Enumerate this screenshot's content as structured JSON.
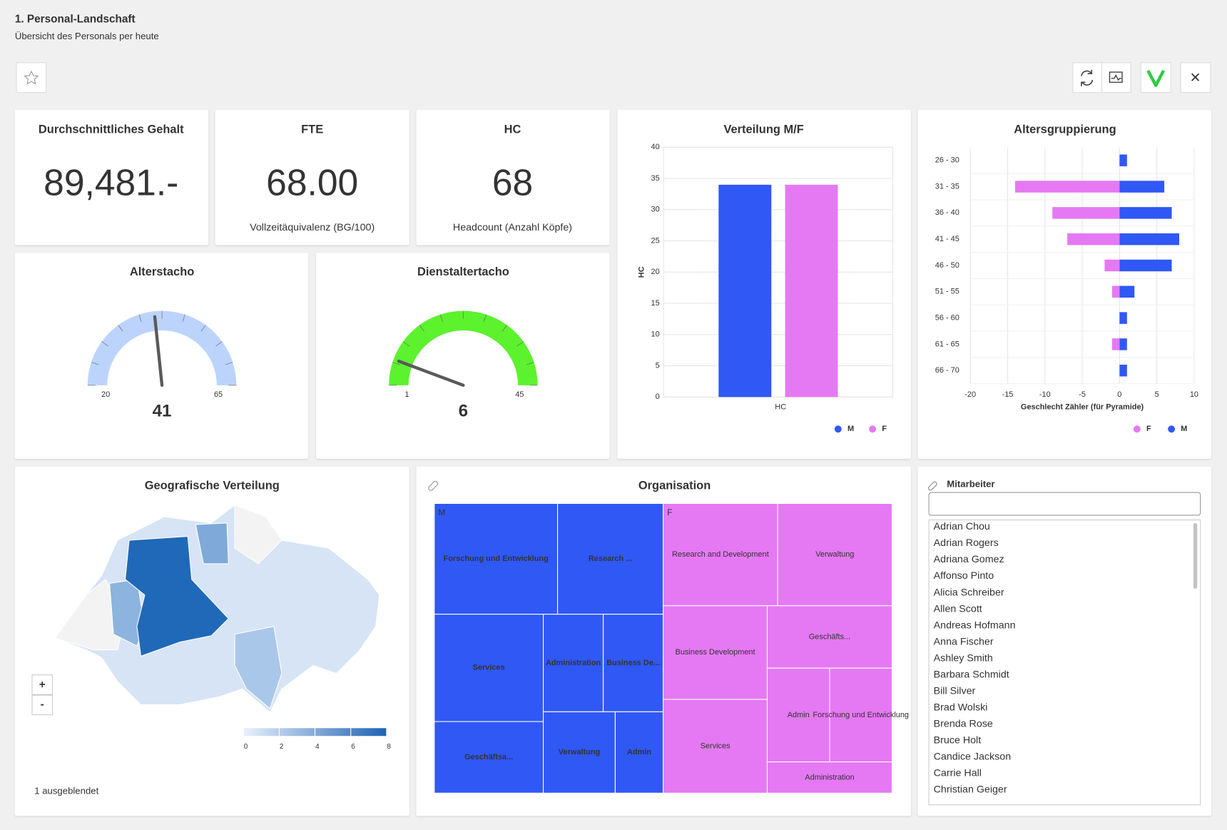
{
  "header": {
    "title": "1. Personal-Landschaft",
    "subtitle": "Übersicht des Personals per heute"
  },
  "kpis": [
    {
      "title": "Durchschnittliches Gehalt",
      "value": "89,481.-"
    },
    {
      "title": "FTE",
      "value": "68.00",
      "caption": "Vollzeitäquivalenz (BG/100)"
    },
    {
      "title": "HC",
      "value": "68",
      "caption": "Headcount (Anzahl Köpfe)"
    }
  ],
  "gauges": [
    {
      "title": "Alterstacho",
      "min": 20,
      "max": 65,
      "value": 41,
      "color": "#bcd4fb"
    },
    {
      "title": "Dienstaltertacho",
      "min": 1,
      "max": 45,
      "value": 6,
      "color": "#5cf22e"
    }
  ],
  "gender_chart": {
    "type": "bar",
    "title": "Verteilung M/F",
    "y_label": "HC",
    "categories": [
      "HC"
    ],
    "series": [
      {
        "name": "M",
        "color": "#3058f5",
        "values": [
          34
        ]
      },
      {
        "name": "F",
        "color": "#e579f3",
        "values": [
          34
        ]
      }
    ],
    "ylim": [
      0,
      40
    ],
    "yticks": [
      0,
      5,
      10,
      15,
      20,
      25,
      30,
      35,
      40
    ],
    "grid": true,
    "legend": "bottom-right"
  },
  "age_chart": {
    "type": "bar",
    "orientation": "horizontal",
    "title": "Altersgruppierung",
    "x_label": "Geschlecht Zähler (für Pyramide)",
    "categories": [
      "26 - 30",
      "31 - 35",
      "36 - 40",
      "41 - 45",
      "46 - 50",
      "51 - 55",
      "56 - 60",
      "61 - 65",
      "66 - 70"
    ],
    "series": [
      {
        "name": "F",
        "color": "#e579f3",
        "values": [
          0,
          -14,
          -9,
          -7,
          -2,
          -1,
          0,
          -1,
          0
        ]
      },
      {
        "name": "M",
        "color": "#3058f5",
        "values": [
          1,
          6,
          7,
          8,
          7,
          2,
          1,
          1,
          1
        ]
      }
    ],
    "xlim": [
      -20,
      10
    ],
    "xticks": [
      -20,
      -15,
      -10,
      -5,
      0,
      5,
      10
    ],
    "grid": true,
    "legend": "bottom-right"
  },
  "map": {
    "title": "Geografische Verteilung",
    "colorbar_ticks": [
      0,
      2,
      4,
      6,
      8
    ],
    "zoom_in": "+",
    "zoom_out": "-",
    "note": "1 ausgeblendet"
  },
  "treemap": {
    "title": "Organisation",
    "groups": [
      {
        "name": "M",
        "color": "#3058f5",
        "children": [
          {
            "name": "Forschung und Entwicklung",
            "value": 7
          },
          {
            "name": "Research ...",
            "value": 6
          },
          {
            "name": "Services",
            "value": 6
          },
          {
            "name": "Geschäftsa...",
            "value": 4
          },
          {
            "name": "Administration",
            "value": 3
          },
          {
            "name": "Business De...",
            "value": 3
          },
          {
            "name": "Verwaltung",
            "value": 3
          },
          {
            "name": "Admin",
            "value": 2
          }
        ]
      },
      {
        "name": "F",
        "color": "#e579f3",
        "children": [
          {
            "name": "Research and Development",
            "value": 6
          },
          {
            "name": "Verwaltung",
            "value": 6
          },
          {
            "name": "Business Development",
            "value": 5
          },
          {
            "name": "Services",
            "value": 5
          },
          {
            "name": "Geschäfts...",
            "value": 4
          },
          {
            "name": "Admin",
            "value": 3
          },
          {
            "name": "Forschung und Entwicklung",
            "value": 3
          },
          {
            "name": "Administration",
            "value": 2
          }
        ]
      }
    ]
  },
  "employees": {
    "title": "Mitarbeiter",
    "names": [
      "Adrian Chou",
      "Adrian Rogers",
      "Adriana Gomez",
      "Affonso Pinto",
      "Alicia Schreiber",
      "Allen Scott",
      "Andreas Hofmann",
      "Anna Fischer",
      "Ashley Smith",
      "Barbara Schmidt",
      "Bill Silver",
      "Brad Wolski",
      "Brenda Rose",
      "Bruce Holt",
      "Candice Jackson",
      "Carrie Hall",
      "Christian Geiger"
    ]
  }
}
